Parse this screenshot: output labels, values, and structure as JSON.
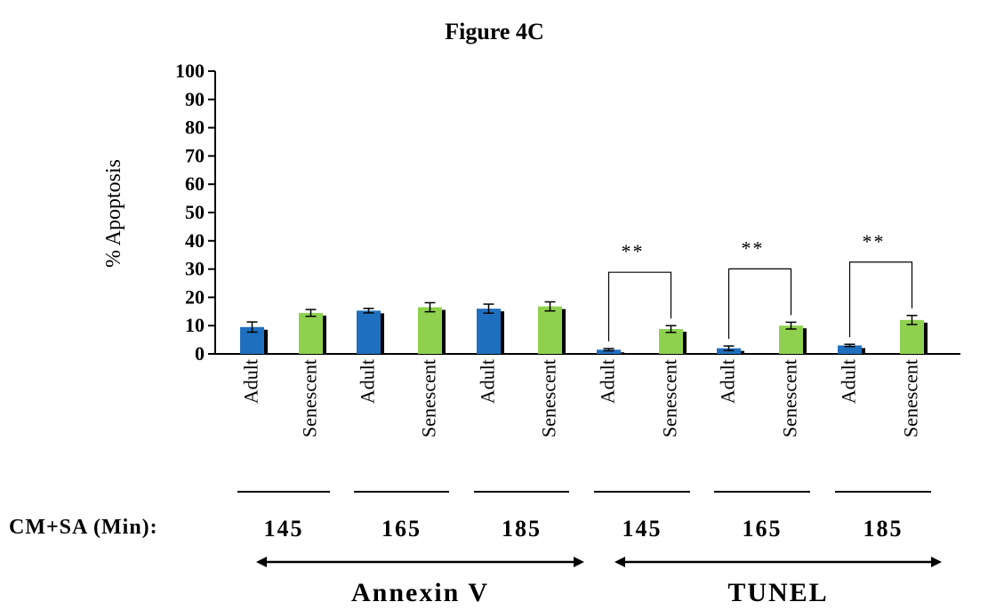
{
  "figure_title": "Figure 4C",
  "chart_data": {
    "type": "bar",
    "title": "",
    "ylabel": "% Apoptosis",
    "ylim": [
      0,
      100
    ],
    "yticks": [
      0,
      10,
      20,
      30,
      40,
      50,
      60,
      70,
      80,
      90,
      100
    ],
    "categories": [
      "Adult",
      "Senescent",
      "Adult",
      "Senescent",
      "Adult",
      "Senescent",
      "Adult",
      "Senescent",
      "Adult",
      "Senescent",
      "Adult",
      "Senescent"
    ],
    "values": [
      9.5,
      14.5,
      15.3,
      16.5,
      16,
      16.8,
      1.5,
      8.8,
      2,
      10,
      3,
      12
    ],
    "errors": [
      1.8,
      1.2,
      0.8,
      1.6,
      1.6,
      1.6,
      0.4,
      1.2,
      0.8,
      1.2,
      0.4,
      1.6
    ],
    "colors": [
      "#1f6fbf",
      "#8fd14f",
      "#1f6fbf",
      "#8fd14f",
      "#1f6fbf",
      "#8fd14f",
      "#1f6fbf",
      "#8fd14f",
      "#1f6fbf",
      "#8fd14f",
      "#1f6fbf",
      "#8fd14f"
    ],
    "significance": [
      {
        "from": 6,
        "to": 7,
        "label": "**"
      },
      {
        "from": 8,
        "to": 9,
        "label": "**"
      },
      {
        "from": 10,
        "to": 11,
        "label": "**"
      }
    ],
    "group_prefix": "CM+SA (Min):",
    "groups": [
      "145",
      "165",
      "185",
      "145",
      "165",
      "185"
    ],
    "assays": [
      "Annexin V",
      "TUNEL"
    ]
  }
}
